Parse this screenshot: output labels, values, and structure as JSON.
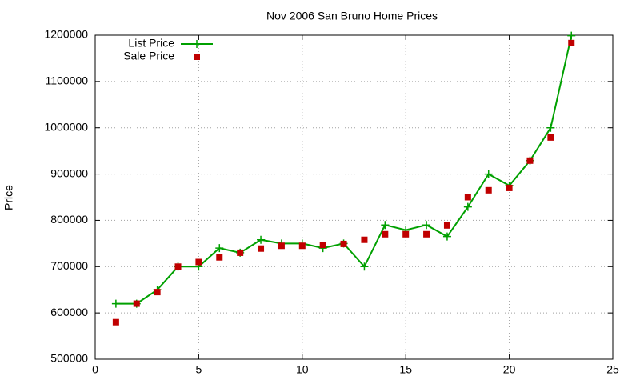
{
  "chart_data": {
    "type": "line",
    "title": "Nov 2006 San Bruno Home Prices",
    "y_label": "Price",
    "x": [
      1,
      2,
      3,
      4,
      5,
      6,
      7,
      8,
      9,
      10,
      11,
      12,
      13,
      14,
      15,
      16,
      17,
      18,
      19,
      20,
      21,
      22,
      23
    ],
    "series": [
      {
        "name": "List Price",
        "color": "#00a000",
        "style": "linespoints",
        "marker": "plus",
        "values": [
          620000,
          620000,
          650000,
          700000,
          700000,
          740000,
          730000,
          758000,
          750000,
          750000,
          740000,
          750000,
          700000,
          790000,
          779000,
          790000,
          765000,
          829000,
          900000,
          875000,
          929000,
          1000000,
          1199000
        ]
      },
      {
        "name": "Sale Price",
        "color": "#c00000",
        "style": "points",
        "marker": "square",
        "values": [
          580000,
          620000,
          645000,
          700000,
          710000,
          720000,
          730000,
          739000,
          745000,
          745000,
          747000,
          749000,
          758000,
          770000,
          770000,
          770000,
          789000,
          850000,
          865000,
          870000,
          929000,
          979000,
          1183000
        ]
      }
    ],
    "xlim": [
      0,
      25
    ],
    "xticks": [
      0,
      5,
      10,
      15,
      20,
      25
    ],
    "ylim": [
      500000,
      1200000
    ],
    "yticks": [
      500000,
      600000,
      700000,
      800000,
      900000,
      1000000,
      1100000,
      1200000
    ],
    "grid": true,
    "legend": "top-left"
  }
}
